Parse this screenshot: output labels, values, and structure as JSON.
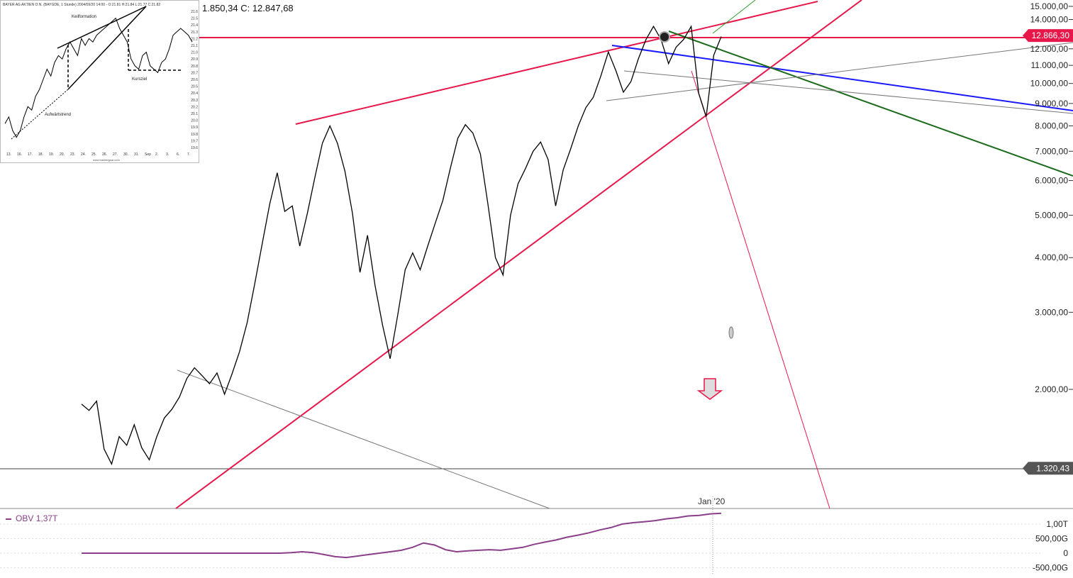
{
  "header": {
    "ohlc_text": "1.850,34  C: 12.847,68"
  },
  "chart_data": {
    "type": "line",
    "title": "",
    "scale": "log",
    "x_labels": [
      "Jan '20"
    ],
    "y_ticks": [
      "15.000,00",
      "14.000,00",
      "13.000,00",
      "12.000,00",
      "11.000,00",
      "10.000,00",
      "9.000,00",
      "8.000,00",
      "7.000,00",
      "6.000,00",
      "5.000,00",
      "4.000,00",
      "3.000,00",
      "2.000,00"
    ],
    "price_markers": [
      {
        "label": "12.866,30",
        "value": 12866.3,
        "color": "#e8174a"
      },
      {
        "label": "1.320,43",
        "value": 1320.43,
        "color": "#555555"
      }
    ],
    "series": [
      {
        "values": [
          1850,
          1790,
          1880,
          1460,
          1350,
          1560,
          1490,
          1660,
          1470,
          1380,
          1560,
          1720,
          1800,
          1920,
          2120,
          2240,
          2150,
          2060,
          2180,
          1950,
          2170,
          2440,
          2840,
          3480,
          4300,
          5300,
          6250,
          5100,
          5250,
          4250,
          5050,
          6100,
          7300,
          8000,
          7300,
          6300,
          5050,
          3700,
          4500,
          3450,
          2800,
          2350,
          2950,
          3750,
          4100,
          3750,
          4250,
          4800,
          5400,
          6400,
          7500,
          8050,
          7700,
          6900,
          5300,
          4000,
          3650,
          5000,
          5900,
          6400,
          7000,
          7350,
          6700,
          5250,
          6350,
          7100,
          8000,
          8800,
          9300,
          10400,
          11800,
          10700,
          9550,
          10100,
          11400,
          12600,
          13500,
          12600,
          11100,
          12100,
          12600,
          13500,
          9500,
          8400,
          11600,
          12800
        ]
      }
    ],
    "indicator": {
      "name": "OBV",
      "value_label": "1,37T",
      "y_ticks": [
        "1,00T",
        "500,00G",
        "0",
        "-500,00G"
      ],
      "values": [
        0,
        0,
        0,
        0,
        0,
        0,
        0,
        0,
        0,
        0,
        0,
        0,
        0,
        0,
        0,
        0,
        0,
        0,
        0,
        0.02,
        0.05,
        0.02,
        -0.05,
        -0.12,
        -0.15,
        -0.1,
        -0.05,
        0,
        0.05,
        0.1,
        0.2,
        0.35,
        0.28,
        0.12,
        0.05,
        0.08,
        0.1,
        0.12,
        0.1,
        0.15,
        0.2,
        0.3,
        0.38,
        0.45,
        0.55,
        0.62,
        0.7,
        0.8,
        0.88,
        1.0,
        1.05,
        1.08,
        1.12,
        1.18,
        1.22,
        1.28,
        1.3,
        1.35,
        1.37
      ]
    },
    "inset": {
      "header": "BAYER AG AKTIEN O.N. (BAYGDE, 1 Stunde) 2004/09/20 14:00 - O:21.81 H:21.84 L:21.77 C:21.82",
      "labels": [
        "Keilformation",
        "Kursziel",
        "Aufwärtstrend"
      ],
      "x_ticks": [
        "13.",
        "16.",
        "17.",
        "18.",
        "19.",
        "20.",
        "23.",
        "24.",
        "25.",
        "26.",
        "27.",
        "30.",
        "31.",
        "Sep",
        "2.",
        "3.",
        "6.",
        "7."
      ],
      "y_ticks": [
        "21.6",
        "21.5",
        "21.4",
        "21.3",
        "21.2",
        "21.1",
        "21.0",
        "20.9",
        "20.8",
        "20.7",
        "20.6",
        "20.5",
        "20.4",
        "20.3",
        "20.2",
        "20.1",
        "20.0",
        "19.9",
        "19.8",
        "19.7",
        "19.6"
      ],
      "footer": "www.tradesignal.com",
      "values": [
        19.95,
        20.05,
        19.85,
        19.75,
        19.85,
        20.05,
        20.2,
        20.15,
        20.35,
        20.45,
        20.6,
        20.75,
        20.65,
        20.85,
        20.95,
        20.9,
        21.05,
        21.15,
        21.05,
        20.95,
        21.2,
        21.1,
        21.2,
        21.15,
        21.25,
        21.3,
        21.35,
        21.4,
        21.45,
        21.5,
        21.35,
        21.25,
        21.15,
        20.9,
        20.8,
        20.75,
        20.95,
        21.0,
        20.8,
        20.75,
        20.7,
        20.85,
        20.9,
        21.05,
        21.25,
        21.3,
        21.35,
        21.3,
        21.25,
        21.15
      ]
    }
  }
}
